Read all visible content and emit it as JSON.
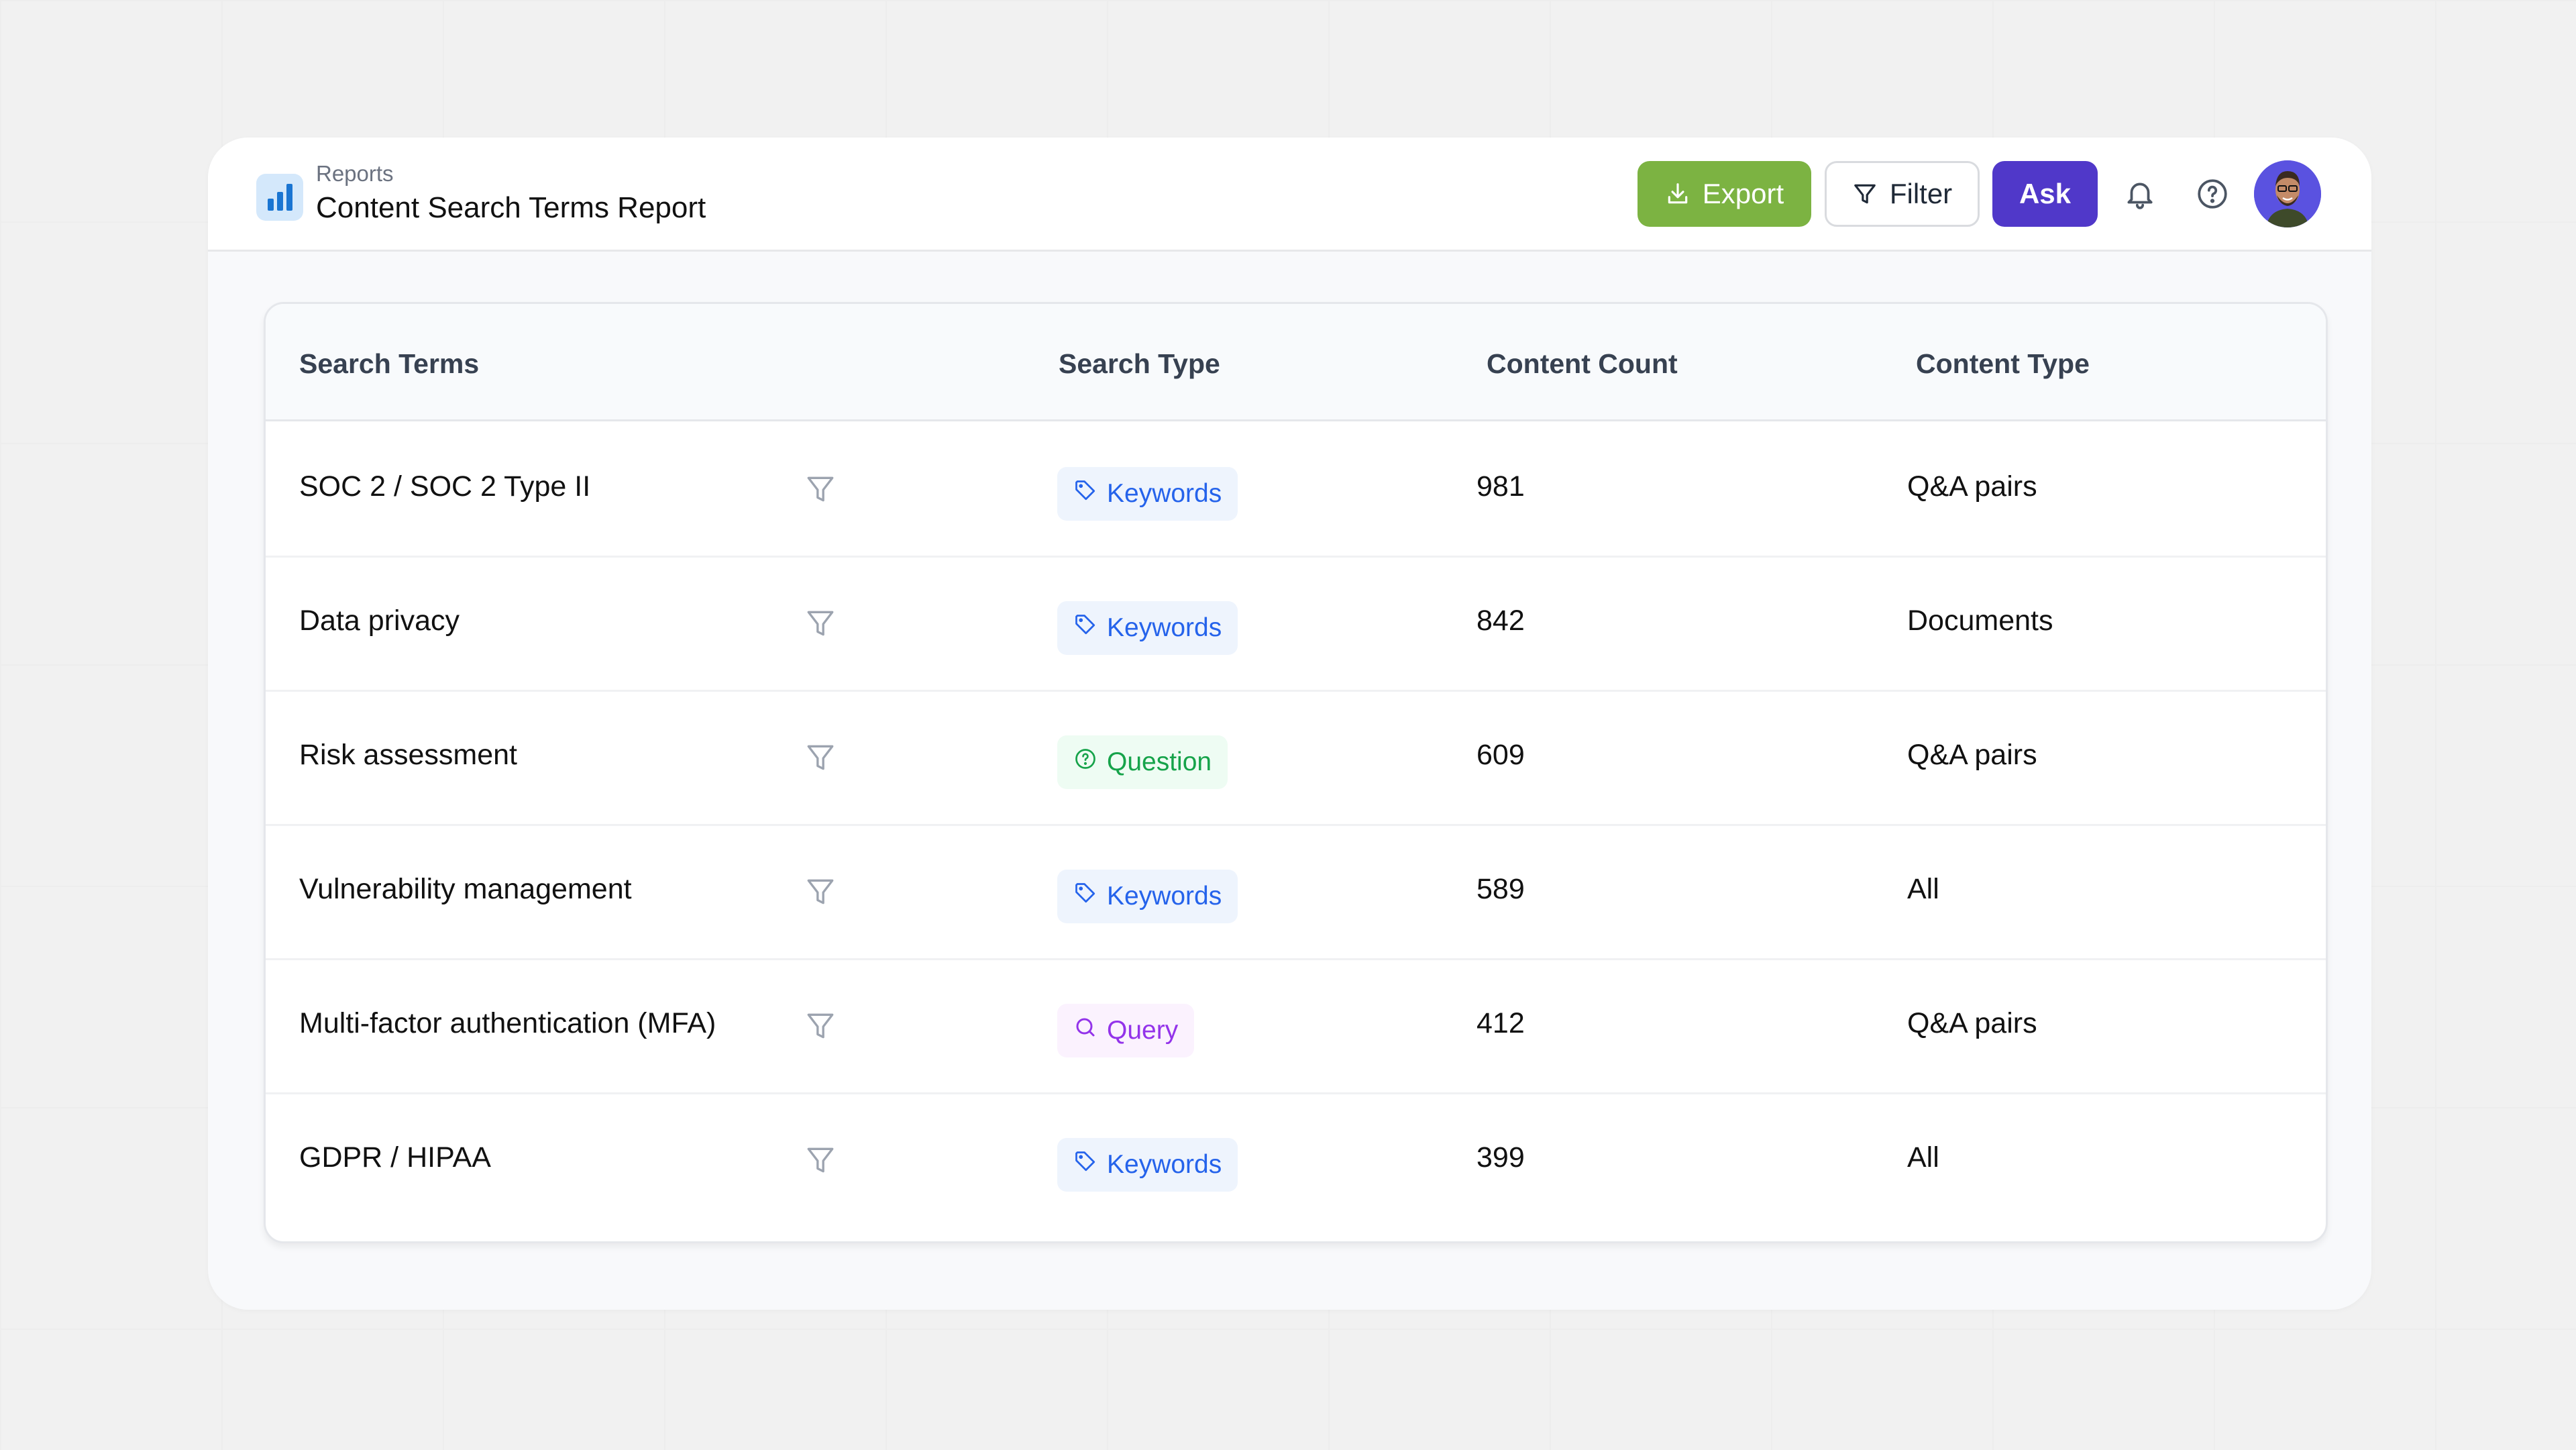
{
  "header": {
    "breadcrumb": "Reports",
    "title": "Content Search Terms Report",
    "buttons": {
      "export": "Export",
      "filter": "Filter",
      "ask": "Ask"
    },
    "icons": {
      "app": "bar-chart-icon",
      "bell": "bell-icon",
      "help": "help-circle-icon",
      "avatar": "user-avatar"
    },
    "colors": {
      "export_bg": "#7cb342",
      "ask_bg": "#5038c9",
      "app_icon_bg": "#d4e8fb",
      "app_icon_fg": "#1a75d2"
    }
  },
  "table": {
    "columns": [
      "Search Terms",
      "Search Type",
      "Content Count",
      "Content Type"
    ],
    "rows": [
      {
        "term": "SOC 2 / SOC 2 Type II",
        "search_type": "Keywords",
        "type_key": "keywords",
        "count": "981",
        "content_type": "Q&A pairs"
      },
      {
        "term": "Data privacy",
        "search_type": "Keywords",
        "type_key": "keywords",
        "count": "842",
        "content_type": "Documents"
      },
      {
        "term": "Risk assessment",
        "search_type": "Question",
        "type_key": "question",
        "count": "609",
        "content_type": "Q&A pairs"
      },
      {
        "term": "Vulnerability management",
        "search_type": "Keywords",
        "type_key": "keywords",
        "count": "589",
        "content_type": "All"
      },
      {
        "term": "Multi-factor authentication (MFA)",
        "search_type": "Query",
        "type_key": "query",
        "count": "412",
        "content_type": "Q&A pairs"
      },
      {
        "term": "GDPR / HIPAA",
        "search_type": "Keywords",
        "type_key": "keywords",
        "count": "399",
        "content_type": "All"
      }
    ],
    "badge_colors": {
      "keywords": {
        "bg": "#eef4fd",
        "fg": "#2563eb",
        "icon": "tag-icon"
      },
      "question": {
        "bg": "#eefcf3",
        "fg": "#16a34a",
        "icon": "question-circle-icon"
      },
      "query": {
        "bg": "#fbf2fe",
        "fg": "#9333ea",
        "icon": "search-icon"
      }
    }
  }
}
